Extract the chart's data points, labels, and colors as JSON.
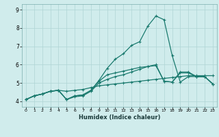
{
  "xlabel": "Humidex (Indice chaleur)",
  "bg_color": "#d0ecec",
  "line_color": "#1a7a6e",
  "grid_color": "#aed4d4",
  "xlim": [
    -0.5,
    23.5
  ],
  "ylim": [
    3.7,
    9.3
  ],
  "xticks": [
    0,
    1,
    2,
    3,
    4,
    5,
    6,
    7,
    8,
    9,
    10,
    11,
    12,
    13,
    14,
    15,
    16,
    17,
    18,
    19,
    20,
    21,
    22,
    23
  ],
  "yticks": [
    4,
    5,
    6,
    7,
    8,
    9
  ],
  "line1_x": [
    0,
    1,
    2,
    3,
    4,
    5,
    6,
    7,
    8,
    9,
    10,
    11,
    12,
    13,
    14,
    15,
    16,
    17,
    18,
    19,
    20,
    21,
    22,
    23
  ],
  "line1_y": [
    4.1,
    4.3,
    4.4,
    4.55,
    4.6,
    4.55,
    4.6,
    4.65,
    4.75,
    4.85,
    4.9,
    4.95,
    5.0,
    5.05,
    5.1,
    5.15,
    5.2,
    5.25,
    5.3,
    5.35,
    5.4,
    5.4,
    5.4,
    5.4
  ],
  "line2_x": [
    0,
    1,
    2,
    3,
    4,
    5,
    6,
    7,
    8,
    9,
    10,
    11,
    12,
    13,
    14,
    15,
    16,
    17,
    18,
    19,
    20,
    21,
    22,
    23
  ],
  "line2_y": [
    4.1,
    4.3,
    4.4,
    4.55,
    4.6,
    4.1,
    4.3,
    4.35,
    4.6,
    5.15,
    5.8,
    6.3,
    6.6,
    7.05,
    7.25,
    8.1,
    8.65,
    8.45,
    6.5,
    5.05,
    5.35,
    5.35,
    5.35,
    4.95
  ],
  "line3_x": [
    0,
    1,
    2,
    3,
    4,
    5,
    6,
    7,
    8,
    9,
    10,
    11,
    12,
    13,
    14,
    15,
    16,
    17,
    18,
    19,
    20,
    21,
    22,
    23
  ],
  "line3_y": [
    4.1,
    4.3,
    4.4,
    4.55,
    4.6,
    4.1,
    4.25,
    4.3,
    4.55,
    5.0,
    5.2,
    5.35,
    5.45,
    5.6,
    5.75,
    5.9,
    6.0,
    5.1,
    5.05,
    5.6,
    5.6,
    5.35,
    5.35,
    4.95
  ],
  "line4_x": [
    0,
    1,
    2,
    3,
    4,
    5,
    6,
    7,
    8,
    9,
    10,
    11,
    12,
    13,
    14,
    15,
    16,
    17,
    18,
    19,
    20,
    21,
    22,
    23
  ],
  "line4_y": [
    4.1,
    4.3,
    4.4,
    4.55,
    4.6,
    4.1,
    4.3,
    4.35,
    4.6,
    5.1,
    5.45,
    5.55,
    5.65,
    5.75,
    5.85,
    5.9,
    5.95,
    5.1,
    5.05,
    5.55,
    5.55,
    5.35,
    5.35,
    4.95
  ]
}
